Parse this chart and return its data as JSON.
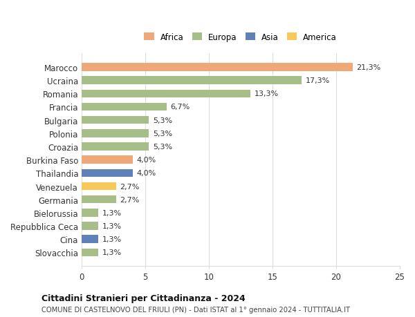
{
  "categories": [
    "Marocco",
    "Ucraina",
    "Romania",
    "Francia",
    "Bulgaria",
    "Polonia",
    "Croazia",
    "Burkina Faso",
    "Thailandia",
    "Venezuela",
    "Germania",
    "Bielorussia",
    "Repubblica Ceca",
    "Cina",
    "Slovacchia"
  ],
  "values": [
    21.3,
    17.3,
    13.3,
    6.7,
    5.3,
    5.3,
    5.3,
    4.0,
    4.0,
    2.7,
    2.7,
    1.3,
    1.3,
    1.3,
    1.3
  ],
  "labels": [
    "21,3%",
    "17,3%",
    "13,3%",
    "6,7%",
    "5,3%",
    "5,3%",
    "5,3%",
    "4,0%",
    "4,0%",
    "2,7%",
    "2,7%",
    "1,3%",
    "1,3%",
    "1,3%",
    "1,3%"
  ],
  "colors": [
    "#f0a878",
    "#a8be88",
    "#a8be88",
    "#a8be88",
    "#a8be88",
    "#a8be88",
    "#a8be88",
    "#f0a878",
    "#6080b8",
    "#f8c858",
    "#a8be88",
    "#a8be88",
    "#a8be88",
    "#6080b8",
    "#a8be88"
  ],
  "legend_labels": [
    "Africa",
    "Europa",
    "Asia",
    "America"
  ],
  "legend_colors": [
    "#f0a878",
    "#a8be88",
    "#6080b8",
    "#f8c858"
  ],
  "xlim": [
    0,
    25
  ],
  "xticks": [
    0,
    5,
    10,
    15,
    20,
    25
  ],
  "title": "Cittadini Stranieri per Cittadinanza - 2024",
  "subtitle": "COMUNE DI CASTELNOVO DEL FRIULI (PN) - Dati ISTAT al 1° gennaio 2024 - TUTTITALIA.IT",
  "bg_color": "#ffffff",
  "grid_color": "#dddddd"
}
